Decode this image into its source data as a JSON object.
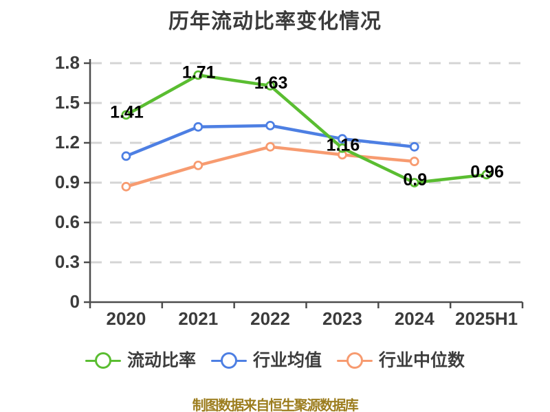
{
  "page": {
    "title": "历年流动比率变化情况",
    "footer_note": "制图数据来自恒生聚源数据库"
  },
  "colors": {
    "background": "#ffffff",
    "grid": "#d4d4d4",
    "axis": "#4c4c4c",
    "tick_text": "#3b3b3b",
    "data_label": "#000000",
    "footer_text": "#9c7d1e",
    "series_current_ratio": "#5abd31",
    "series_industry_mean": "#4d7fe3",
    "series_industry_median": "#f79b70"
  },
  "chart_data": {
    "type": "line",
    "title": "历年流动比率变化情况",
    "categories": [
      "2020",
      "2021",
      "2022",
      "2023",
      "2024",
      "2025H1"
    ],
    "series": [
      {
        "name": "流动比率",
        "color": "#5abd31",
        "values": [
          1.41,
          1.71,
          1.63,
          1.16,
          0.9,
          0.96
        ],
        "point_labels": [
          "1.41",
          "1.71",
          "1.63",
          "1.16",
          "0.9",
          "0.96"
        ]
      },
      {
        "name": "行业均值",
        "color": "#4d7fe3",
        "values": [
          1.1,
          1.32,
          1.33,
          1.23,
          1.17,
          null
        ],
        "point_labels": []
      },
      {
        "name": "行业中位数",
        "color": "#f79b70",
        "values": [
          0.87,
          1.03,
          1.17,
          1.11,
          1.06,
          null
        ],
        "point_labels": []
      }
    ],
    "xlabel": "",
    "ylabel": "",
    "ylim": [
      0,
      1.8
    ],
    "ytick_labels": [
      "0",
      "0.3",
      "0.6",
      "0.9",
      "1.2",
      "1.5",
      "1.8"
    ],
    "grid": "horizontal-dashed",
    "marker": "hollow-circle",
    "legend_position": "bottom"
  },
  "legend": {
    "items": [
      {
        "label": "流动比率",
        "color": "#5abd31"
      },
      {
        "label": "行业均值",
        "color": "#4d7fe3"
      },
      {
        "label": "行业中位数",
        "color": "#f79b70"
      }
    ]
  }
}
